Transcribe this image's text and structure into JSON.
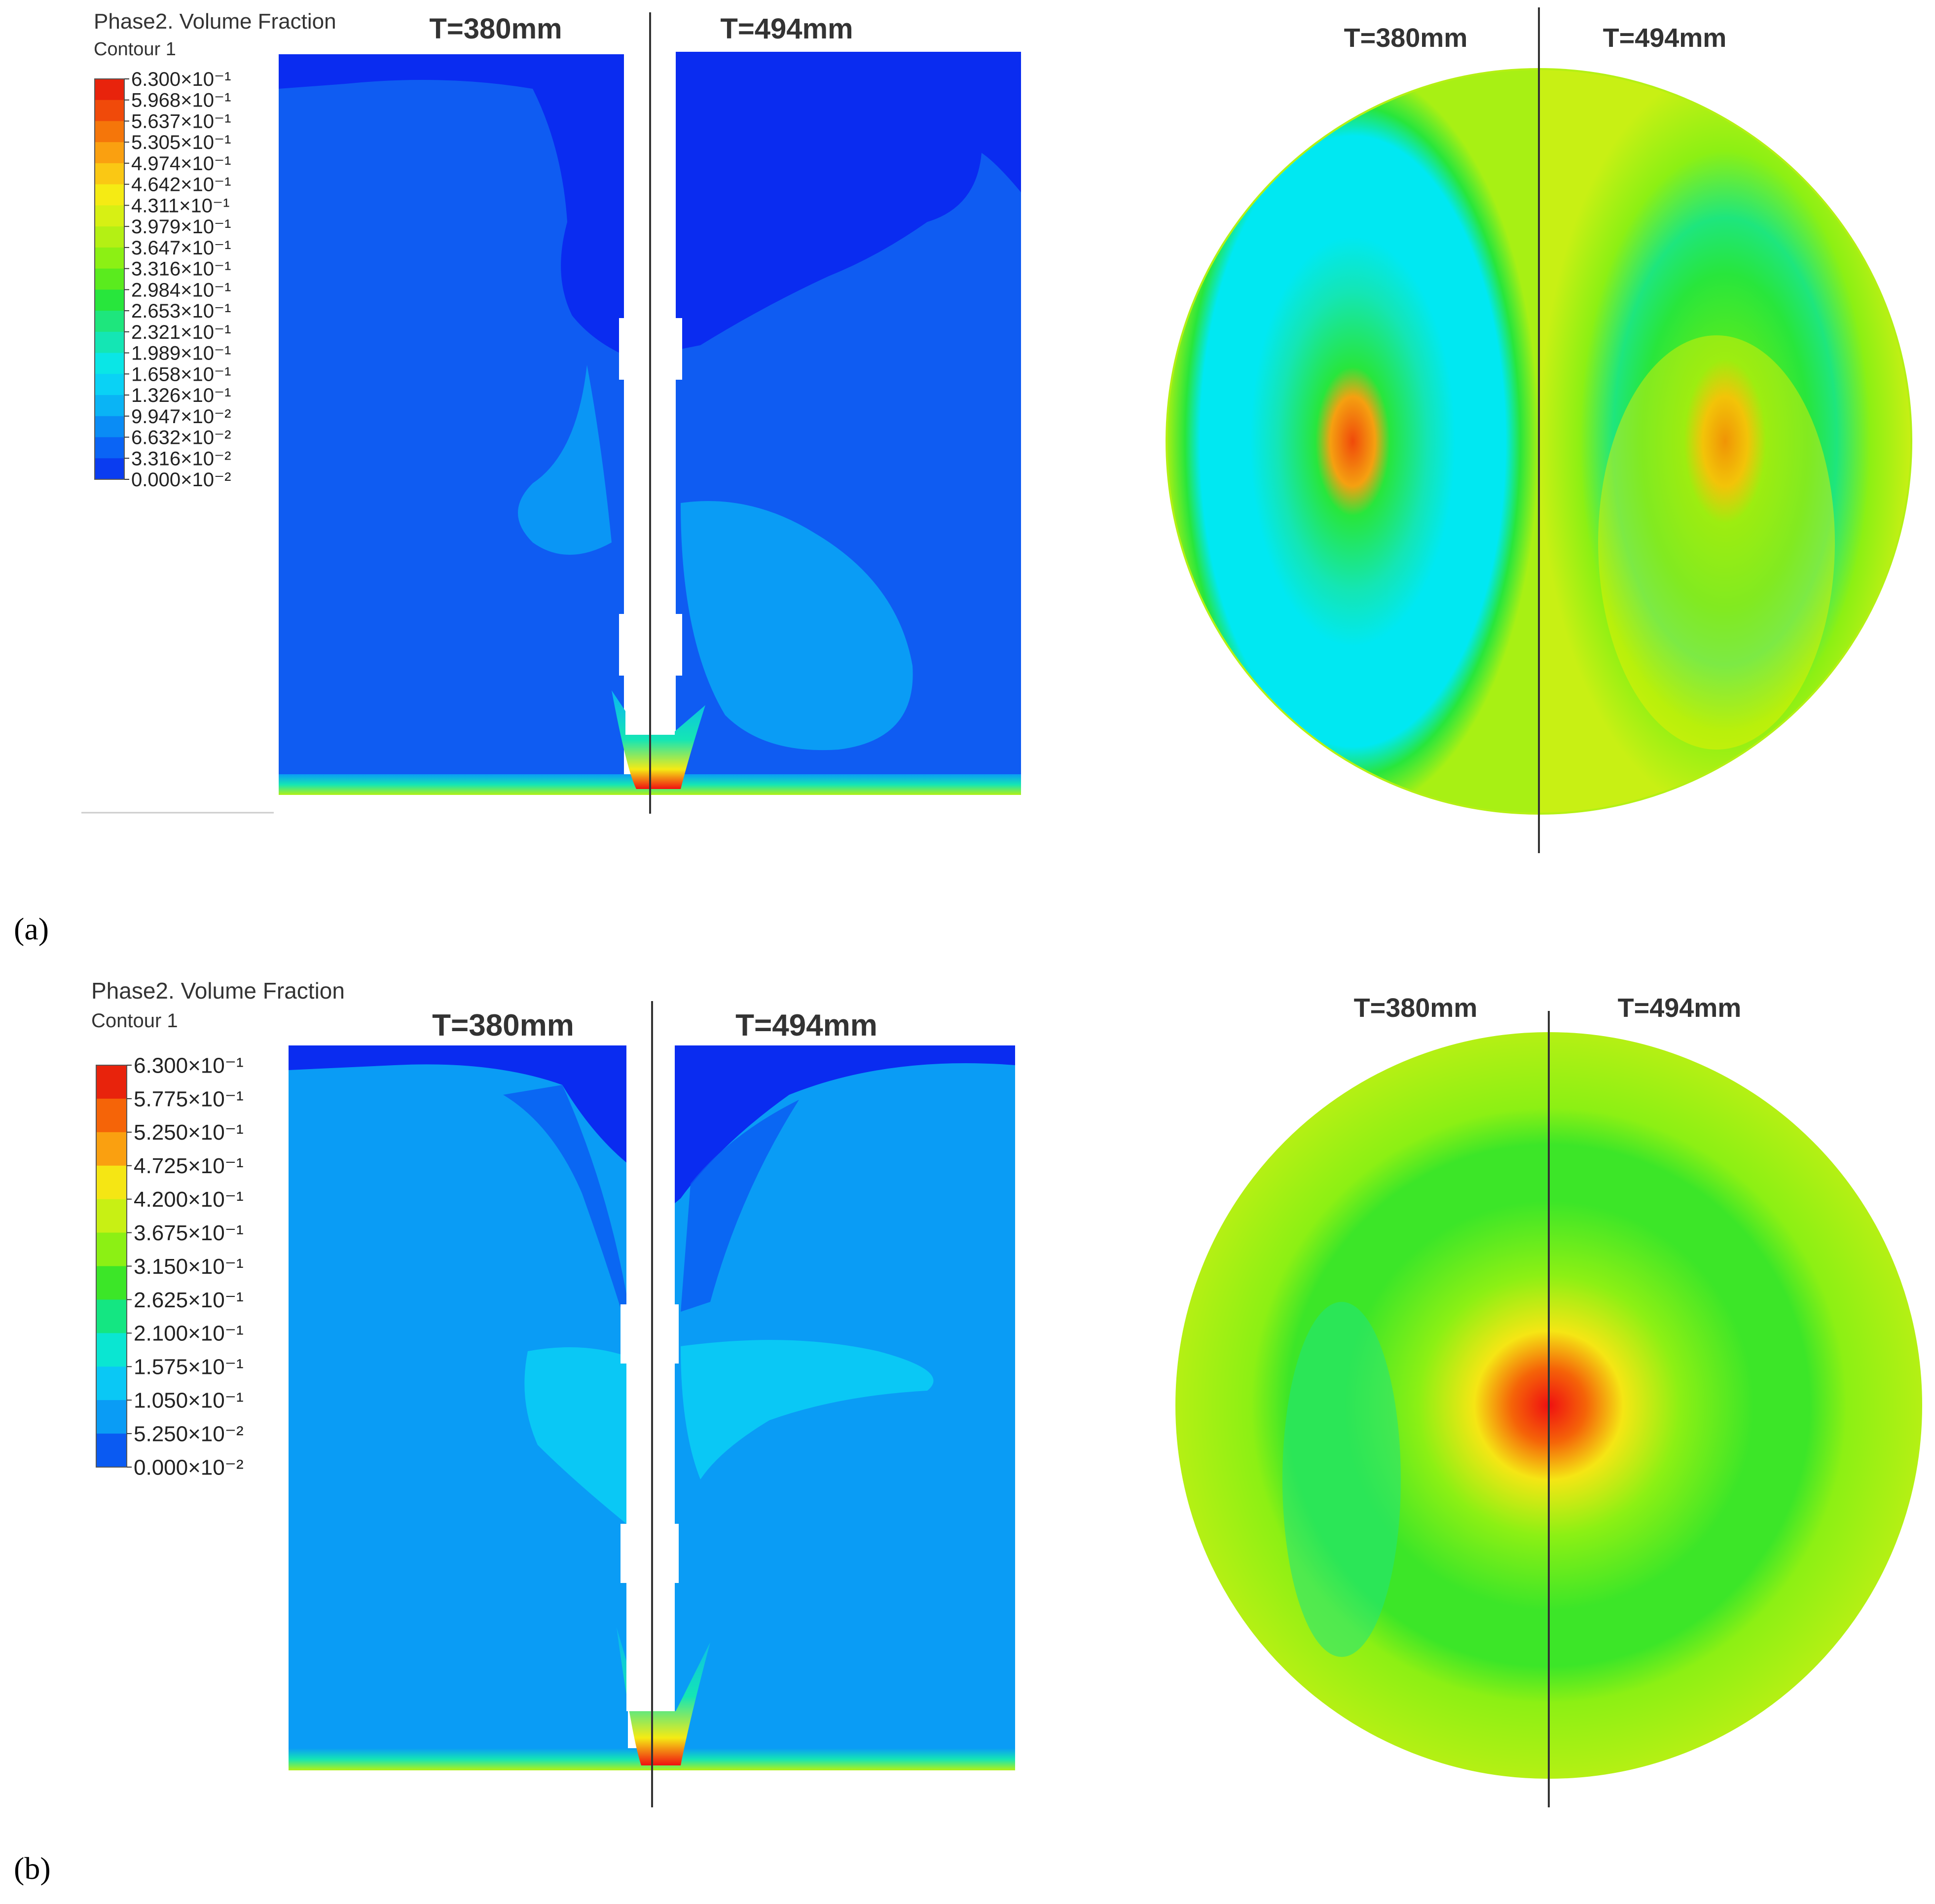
{
  "panels": [
    {
      "id": "a",
      "label": "(a)",
      "legend_title": "Phase2. Volume Fraction",
      "legend_subtitle": "Contour 1",
      "legend_ticks": [
        "6.300×10⁻¹",
        "5.968×10⁻¹",
        "5.637×10⁻¹",
        "5.305×10⁻¹",
        "4.974×10⁻¹",
        "4.642×10⁻¹",
        "4.311×10⁻¹",
        "3.979×10⁻¹",
        "3.647×10⁻¹",
        "3.316×10⁻¹",
        "2.984×10⁻¹",
        "2.653×10⁻¹",
        "2.321×10⁻¹",
        "1.989×10⁻¹",
        "1.658×10⁻¹",
        "1.326×10⁻¹",
        "9.947×10⁻²",
        "6.632×10⁻²",
        "3.316×10⁻²",
        "0.000×10⁻²"
      ],
      "side_left": "T=380mm",
      "side_right": "T=494mm",
      "circle_left": "T=380mm",
      "circle_right": "T=494mm"
    },
    {
      "id": "b",
      "label": "(b)",
      "legend_title": "Phase2. Volume Fraction",
      "legend_subtitle": "Contour 1",
      "legend_ticks": [
        "6.300×10⁻¹",
        "5.775×10⁻¹",
        "5.250×10⁻¹",
        "4.725×10⁻¹",
        "4.200×10⁻¹",
        "3.675×10⁻¹",
        "3.150×10⁻¹",
        "2.625×10⁻¹",
        "2.100×10⁻¹",
        "1.575×10⁻¹",
        "1.050×10⁻¹",
        "5.250×10⁻²",
        "0.000×10⁻²"
      ],
      "side_left": "T=380mm",
      "side_right": "T=494mm",
      "circle_left": "T=380mm",
      "circle_right": "T=494mm"
    }
  ],
  "colors": {
    "deep_blue": "#0a2cf0",
    "mid_blue": "#0f5cf2",
    "light_blue": "#0a9cf5",
    "cyan": "#00e8f2",
    "green": "#28e63c",
    "yellow_green": "#b4f014",
    "yellow": "#f0f000",
    "orange": "#ff8a00",
    "red": "#f01010"
  },
  "legend_colors_a": [
    "#e8230c",
    "#f04a0a",
    "#f5760a",
    "#faa010",
    "#fac814",
    "#f5eb14",
    "#d7f014",
    "#b4f014",
    "#8cf014",
    "#5aeb1e",
    "#28e63c",
    "#1ee67d",
    "#14e6b4",
    "#0ae6e6",
    "#0ad2f5",
    "#0ab4f5",
    "#0a8cf5",
    "#0a64f5",
    "#0a3cf0"
  ],
  "legend_colors_b": [
    "#e8230c",
    "#f56408",
    "#faa010",
    "#f5e614",
    "#c8f014",
    "#8cf014",
    "#3ce628",
    "#14e682",
    "#0ae6d2",
    "#0ac8f5",
    "#0a9cf5",
    "#0a5af2"
  ]
}
